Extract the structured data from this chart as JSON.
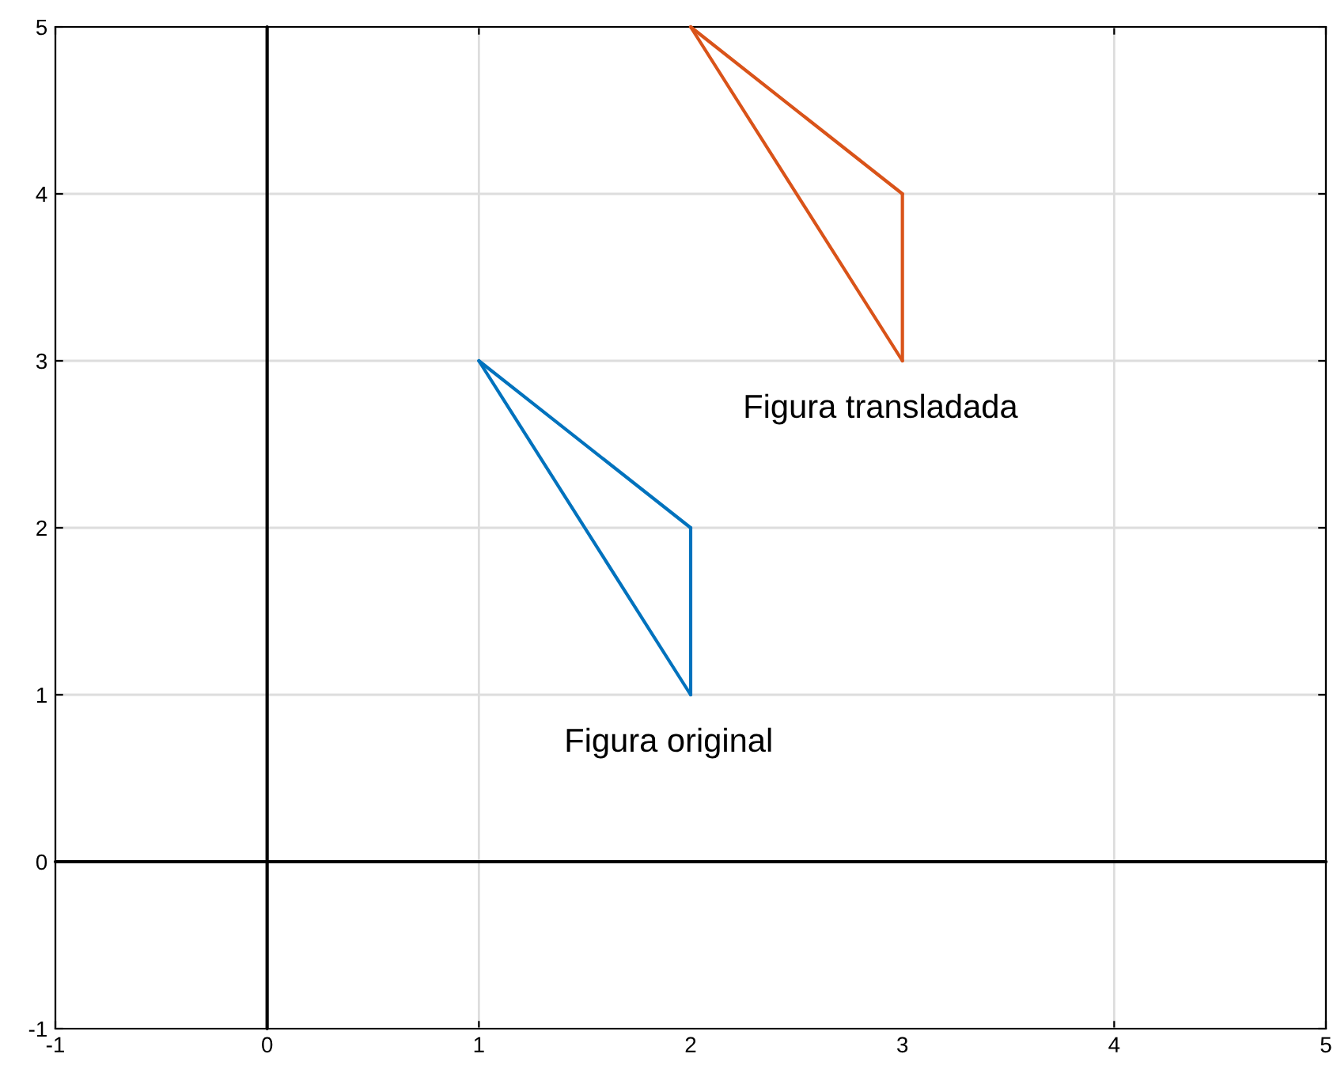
{
  "chart_data": {
    "type": "line",
    "series": [
      {
        "x": [
          -1,
          5
        ],
        "values": [
          0,
          0
        ],
        "color": "#000000"
      },
      {
        "x": [
          0,
          0
        ],
        "values": [
          -1,
          5
        ],
        "color": "#000000"
      },
      {
        "name": "Figura original",
        "x": [
          1,
          2
        ],
        "values": [
          3,
          1
        ],
        "color": "#0072bd"
      },
      {
        "x": [
          1,
          2
        ],
        "values": [
          3,
          2
        ],
        "color": "#0072bd"
      },
      {
        "x": [
          2,
          2
        ],
        "values": [
          1,
          2
        ],
        "color": "#0072bd"
      },
      {
        "name": "Figura transladada",
        "x": [
          2,
          3
        ],
        "values": [
          5,
          3
        ],
        "color": "#d95319"
      },
      {
        "x": [
          2,
          3
        ],
        "values": [
          5,
          4
        ],
        "color": "#d95319"
      },
      {
        "x": [
          3,
          3
        ],
        "values": [
          3,
          4
        ],
        "color": "#d95319"
      }
    ],
    "xlim": [
      -1,
      5
    ],
    "ylim": [
      -1,
      5
    ],
    "xticks": [
      -1,
      0,
      1,
      2,
      3,
      4,
      5
    ],
    "yticks": [
      -1,
      0,
      1,
      2,
      3,
      4,
      5
    ],
    "grid": true,
    "marker": "none",
    "line_style": "solid"
  }
}
